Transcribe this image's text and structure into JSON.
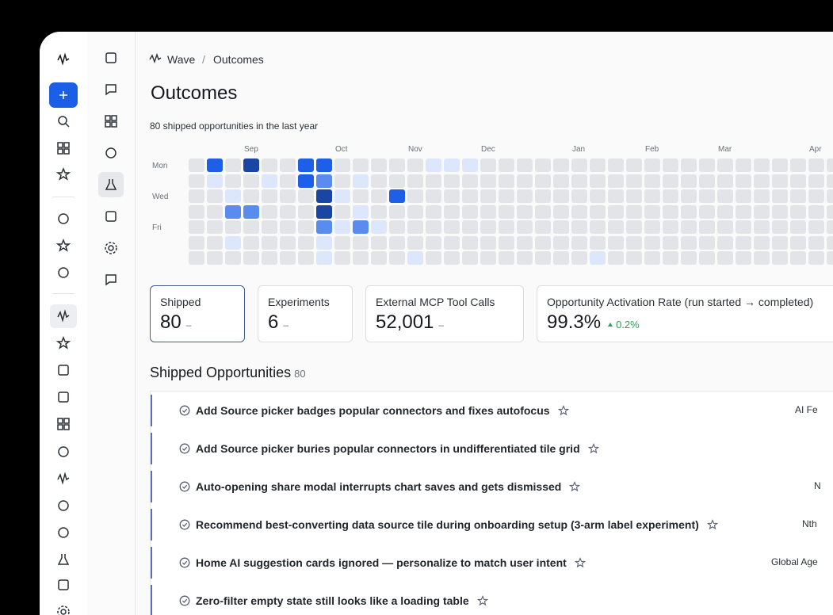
{
  "breadcrumb": {
    "app": "Wave",
    "separator": "/",
    "page": "Outcomes"
  },
  "header": {
    "title": "Outcomes",
    "subtitle": "80 shipped opportunities in the last year"
  },
  "heatmap": {
    "months": [
      "Sep",
      "Oct",
      "Nov",
      "Dec",
      "Jan",
      "Feb",
      "Mar",
      "Apr"
    ],
    "days": [
      "Mon",
      "Wed",
      "Fri"
    ],
    "colors": [
      "#e3e4e7",
      "#dce7fb",
      "#5a8cef",
      "#1d5fe6",
      "#1a46a3"
    ],
    "levels": [
      [
        0,
        3,
        0,
        4,
        0,
        0,
        3,
        3,
        0,
        0,
        0,
        0,
        0,
        1,
        1,
        1,
        0,
        0,
        0,
        0,
        0,
        0,
        0,
        0,
        0,
        0,
        0,
        0,
        0,
        0,
        0,
        0,
        0,
        0,
        0,
        0
      ],
      [
        0,
        1,
        0,
        0,
        1,
        0,
        3,
        2,
        0,
        1,
        0,
        0,
        0,
        0,
        0,
        0,
        0,
        0,
        0,
        0,
        0,
        0,
        0,
        0,
        0,
        0,
        0,
        0,
        0,
        0,
        0,
        0,
        0,
        0,
        0,
        0
      ],
      [
        0,
        0,
        1,
        0,
        0,
        0,
        0,
        4,
        1,
        0,
        0,
        3,
        0,
        0,
        0,
        0,
        0,
        0,
        0,
        0,
        0,
        0,
        0,
        0,
        0,
        0,
        0,
        0,
        0,
        0,
        0,
        0,
        0,
        0,
        0,
        0
      ],
      [
        0,
        0,
        2,
        2,
        0,
        0,
        0,
        4,
        0,
        1,
        0,
        0,
        0,
        0,
        0,
        0,
        0,
        0,
        0,
        0,
        0,
        0,
        0,
        0,
        0,
        0,
        0,
        0,
        0,
        0,
        0,
        0,
        0,
        0,
        0,
        0
      ],
      [
        0,
        0,
        0,
        0,
        0,
        0,
        0,
        2,
        1,
        2,
        1,
        0,
        0,
        0,
        0,
        0,
        0,
        0,
        0,
        0,
        0,
        0,
        0,
        0,
        0,
        0,
        0,
        0,
        0,
        0,
        0,
        0,
        0,
        0,
        0,
        0
      ],
      [
        0,
        0,
        1,
        0,
        0,
        0,
        0,
        1,
        0,
        0,
        0,
        0,
        0,
        0,
        0,
        0,
        0,
        0,
        0,
        0,
        0,
        0,
        0,
        0,
        0,
        0,
        0,
        0,
        0,
        0,
        0,
        0,
        0,
        0,
        0,
        0
      ],
      [
        0,
        0,
        0,
        0,
        0,
        0,
        0,
        1,
        0,
        0,
        0,
        0,
        1,
        0,
        0,
        0,
        0,
        0,
        0,
        0,
        0,
        0,
        1,
        0,
        0,
        0,
        0,
        0,
        0,
        0,
        0,
        0,
        0,
        0,
        0,
        0
      ]
    ]
  },
  "stats": [
    {
      "label": "Shipped",
      "value": "80",
      "delta": "–"
    },
    {
      "label": "Experiments",
      "value": "6",
      "delta": "–"
    },
    {
      "label": "External MCP Tool Calls",
      "value": "52,001",
      "delta": "–"
    },
    {
      "label": "Opportunity Activation Rate (run started → completed)",
      "value": "99.3%",
      "delta": "0.2%"
    }
  ],
  "list": {
    "title": "Shipped Opportunities",
    "count": "80",
    "items": [
      {
        "title": "Add Source picker badges popular connectors and fixes autofocus",
        "tag": "AI Fe"
      },
      {
        "title": "Add Source picker buries popular connectors in undifferentiated tile grid"
      },
      {
        "title": "Auto-opening share modal interrupts chart saves and gets dismissed",
        "tag": "N"
      },
      {
        "title": "Recommend best-converting data source tile during onboarding setup (3-arm label experiment)",
        "tag": "Nth"
      },
      {
        "title": "Home AI suggestion cards ignored — personalize to match user intent",
        "tag": "Global Age"
      },
      {
        "title": "Zero-filter empty state still looks like a loading table"
      }
    ]
  }
}
